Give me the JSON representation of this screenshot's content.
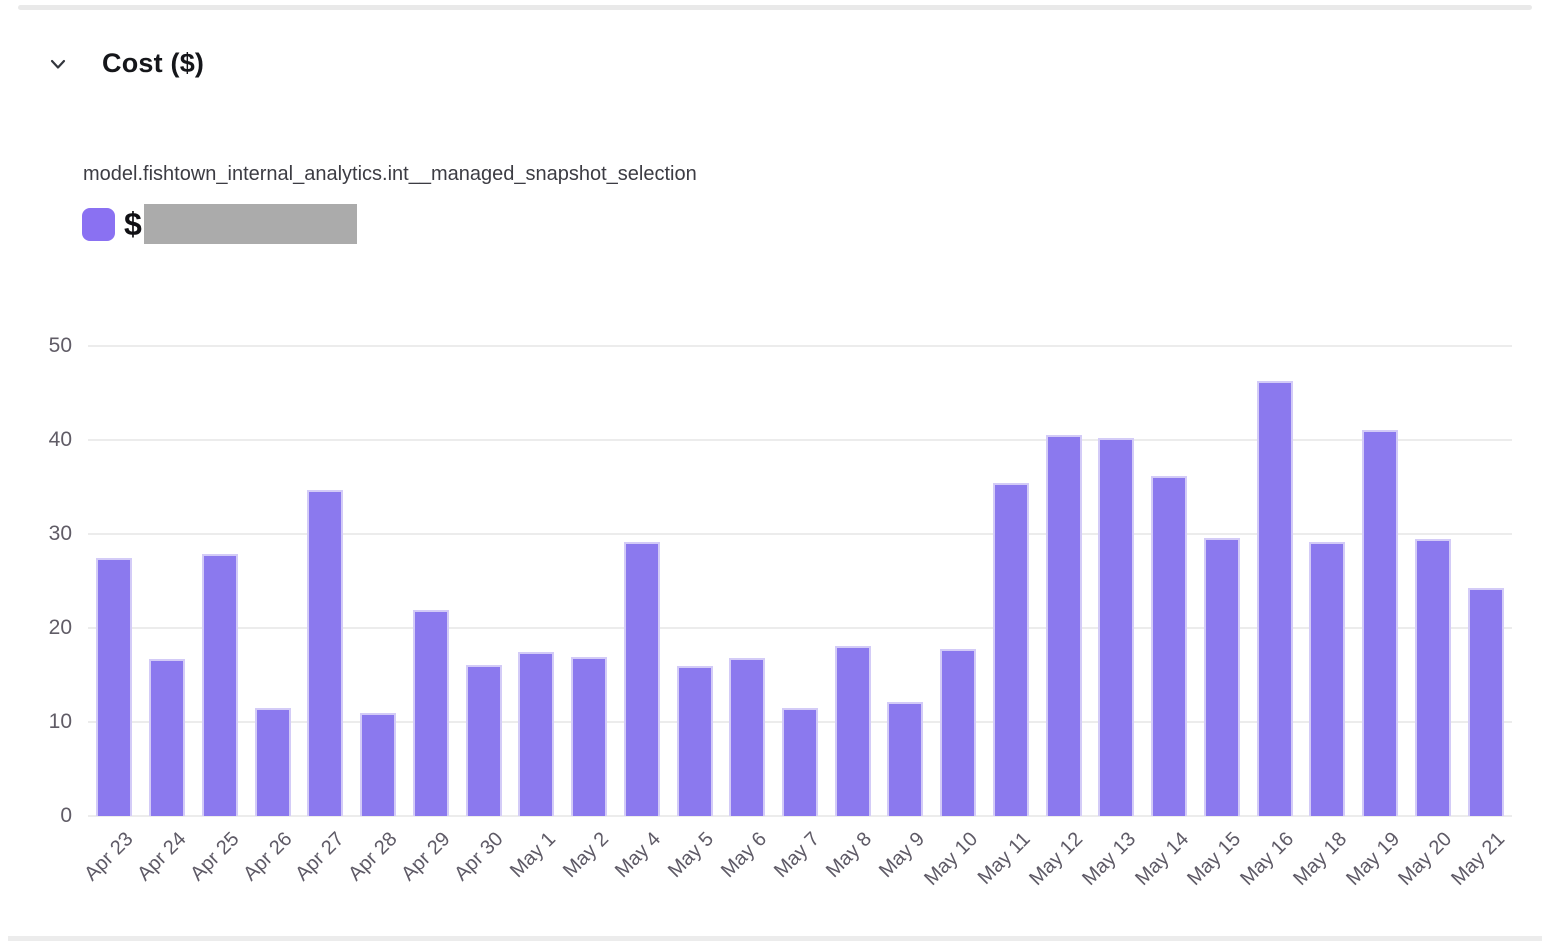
{
  "header": {
    "title": "Cost ($)"
  },
  "chart": {
    "series_label": "model.fishtown_internal_analytics.int__managed_snapshot_selection",
    "legend": {
      "prefix": "$",
      "value_redacted": true,
      "swatch_color": "#8a71f2",
      "redaction_color": "#ababab"
    }
  },
  "chart_data": {
    "type": "bar",
    "title": "Cost ($)",
    "categories": [
      "Apr 23",
      "Apr 24",
      "Apr 25",
      "Apr 26",
      "Apr 27",
      "Apr 28",
      "Apr 29",
      "Apr 30",
      "May 1",
      "May 2",
      "May 4",
      "May 5",
      "May 6",
      "May 7",
      "May 8",
      "May 9",
      "May 10",
      "May 11",
      "May 12",
      "May 13",
      "May 14",
      "May 15",
      "May 16",
      "May 18",
      "May 19",
      "May 20",
      "May 21"
    ],
    "values": [
      27.4,
      16.7,
      27.9,
      11.5,
      34.7,
      11.0,
      21.9,
      16.1,
      17.4,
      16.9,
      29.1,
      16.0,
      16.8,
      11.5,
      18.1,
      12.1,
      17.8,
      35.4,
      40.5,
      40.2,
      36.2,
      29.6,
      46.3,
      29.1,
      41.1,
      29.5,
      24.3
    ],
    "xlabel": "",
    "ylabel": "",
    "ylim": [
      0,
      50
    ],
    "yticks": [
      0,
      10,
      20,
      30,
      40,
      50
    ],
    "grid": true,
    "legend_position": "top-left",
    "bar_color": "#8b79ee"
  }
}
